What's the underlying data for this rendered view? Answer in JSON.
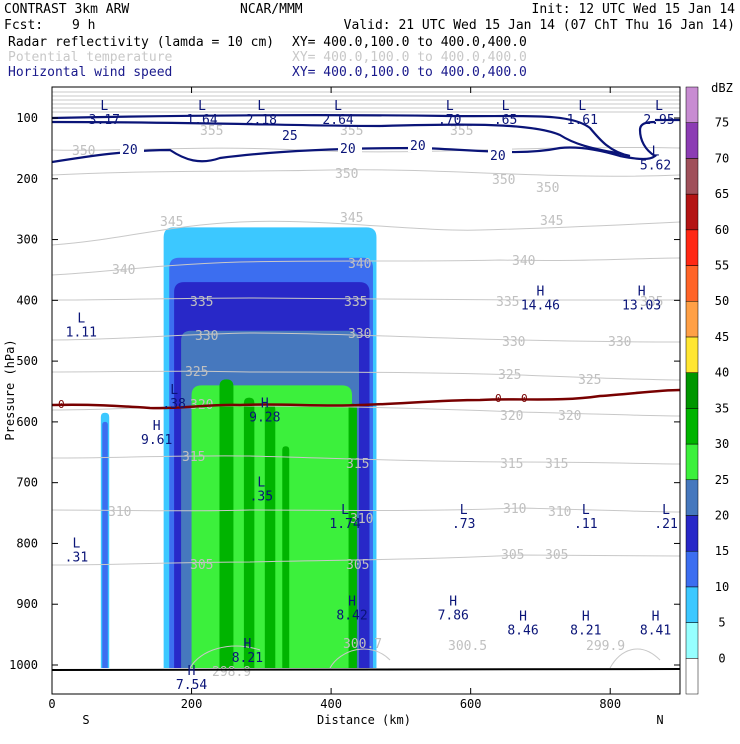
{
  "header": {
    "model": "CONTRAST  3km ARW",
    "org": "NCAR/MMM",
    "init": "Init: 12 UTC Wed 15 Jan 14",
    "fcst_label": "Fcst:",
    "fcst_value": "9 h",
    "valid": "Valid: 21 UTC Wed 15 Jan 14 (07 ChT Thu 16 Jan 14)",
    "fields": [
      {
        "name": "Radar reflectivity (lamda = 10 cm)",
        "xy": "XY= 400.0,100.0 to 400.0,400.0",
        "color": "#000000"
      },
      {
        "name": "Potential temperature",
        "xy": "XY= 400.0,100.0 to 400.0,400.0",
        "color": "#c8c8c8"
      },
      {
        "name": "Horizontal wind speed",
        "xy": "XY= 400.0,100.0 to 400.0,400.0",
        "color": "#1a1a8c"
      }
    ]
  },
  "colorbar": {
    "unit": "dBZ",
    "levels": [
      0,
      5,
      10,
      15,
      20,
      25,
      30,
      35,
      40,
      45,
      50,
      55,
      60,
      65,
      70,
      75
    ],
    "colors": [
      "#ffffff",
      "#96ffff",
      "#3cc8ff",
      "#3c6ef0",
      "#2828c8",
      "#4678be",
      "#3cf03c",
      "#00b400",
      "#009600",
      "#ffe632",
      "#ffa046",
      "#ff6428",
      "#ff2814",
      "#b41414",
      "#a0505a",
      "#8c3cb4",
      "#c88cd2"
    ]
  },
  "chart_data": {
    "type": "cross-section",
    "xlabel": "Distance (km)",
    "ylabel": "Pressure (hPa)",
    "xlim": [
      0,
      900
    ],
    "ylim": [
      1050,
      60
    ],
    "x_ticks": [
      0,
      200,
      400,
      600,
      800
    ],
    "y_ticks": [
      100,
      200,
      300,
      400,
      500,
      600,
      700,
      800,
      900,
      1000
    ],
    "left_label": "S",
    "right_label": "N",
    "reflectivity_bands": [
      {
        "dbz": 5,
        "x": [
          70,
          82
        ],
        "p": [
          585,
          1010
        ]
      },
      {
        "dbz": 10,
        "x": [
          72,
          80
        ],
        "p": [
          600,
          1010
        ]
      },
      {
        "dbz": 5,
        "x": [
          160,
          465
        ],
        "p": [
          280,
          1010
        ]
      },
      {
        "dbz": 10,
        "x": [
          168,
          460
        ],
        "p": [
          330,
          1010
        ]
      },
      {
        "dbz": 15,
        "x": [
          175,
          455
        ],
        "p": [
          370,
          1010
        ]
      },
      {
        "dbz": 20,
        "x": [
          185,
          440
        ],
        "p": [
          450,
          1010
        ]
      },
      {
        "dbz": 25,
        "x": [
          200,
          430
        ],
        "p": [
          540,
          1010
        ]
      },
      {
        "dbz": 30,
        "x": [
          240,
          260
        ],
        "p": [
          530,
          1010
        ]
      },
      {
        "dbz": 30,
        "x": [
          275,
          290
        ],
        "p": [
          560,
          1010
        ]
      },
      {
        "dbz": 30,
        "x": [
          305,
          320
        ],
        "p": [
          570,
          1010
        ]
      },
      {
        "dbz": 30,
        "x": [
          330,
          340
        ],
        "p": [
          640,
          1010
        ]
      },
      {
        "dbz": 30,
        "x": [
          425,
          437
        ],
        "p": [
          570,
          1010
        ]
      }
    ],
    "theta_labels": [
      "355",
      "350",
      "345",
      "340",
      "335",
      "330",
      "325",
      "320",
      "315",
      "310",
      "305",
      "300.7",
      "300.5",
      "299.9",
      "298.9"
    ],
    "wind_labels": [
      "25",
      "20"
    ],
    "zero_line_label": "0",
    "extrema": [
      {
        "type": "L",
        "value": "3.17",
        "x": 75,
        "p": 90
      },
      {
        "type": "L",
        "value": "1.64",
        "x": 215,
        "p": 90
      },
      {
        "type": "L",
        "value": "2.18",
        "x": 300,
        "p": 90
      },
      {
        "type": "L",
        "value": "2.64",
        "x": 410,
        "p": 90
      },
      {
        "type": "L",
        "value": ".70",
        "x": 570,
        "p": 90
      },
      {
        "type": "L",
        "value": ".65",
        "x": 650,
        "p": 90
      },
      {
        "type": "L",
        "value": "1.61",
        "x": 760,
        "p": 90
      },
      {
        "type": "L",
        "value": "2.95",
        "x": 870,
        "p": 90
      },
      {
        "type": "L",
        "value": "5.62",
        "x": 865,
        "p": 165
      },
      {
        "type": "H",
        "value": "14.46",
        "x": 700,
        "p": 395
      },
      {
        "type": "H",
        "value": "13.03",
        "x": 845,
        "p": 395
      },
      {
        "type": "L",
        "value": "1.11",
        "x": 42,
        "p": 440
      },
      {
        "type": "L",
        "value": ".38",
        "x": 175,
        "p": 557
      },
      {
        "type": "H",
        "value": "9.28",
        "x": 305,
        "p": 580
      },
      {
        "type": "H",
        "value": "9.61",
        "x": 150,
        "p": 617
      },
      {
        "type": "L",
        "value": ".35",
        "x": 300,
        "p": 710
      },
      {
        "type": "L",
        "value": "1.74",
        "x": 420,
        "p": 755
      },
      {
        "type": "L",
        "value": ".73",
        "x": 590,
        "p": 755
      },
      {
        "type": "L",
        "value": ".11",
        "x": 765,
        "p": 755
      },
      {
        "type": "L",
        "value": ".21",
        "x": 880,
        "p": 755
      },
      {
        "type": "L",
        "value": ".31",
        "x": 35,
        "p": 810
      },
      {
        "type": "H",
        "value": "8.42",
        "x": 430,
        "p": 905
      },
      {
        "type": "H",
        "value": "7.86",
        "x": 575,
        "p": 905
      },
      {
        "type": "H",
        "value": "8.46",
        "x": 675,
        "p": 930
      },
      {
        "type": "H",
        "value": "8.21",
        "x": 765,
        "p": 930
      },
      {
        "type": "H",
        "value": "8.41",
        "x": 865,
        "p": 930
      },
      {
        "type": "H",
        "value": "8.21",
        "x": 280,
        "p": 975
      },
      {
        "type": "H",
        "value": "7.54",
        "x": 200,
        "p": 1020
      }
    ]
  }
}
